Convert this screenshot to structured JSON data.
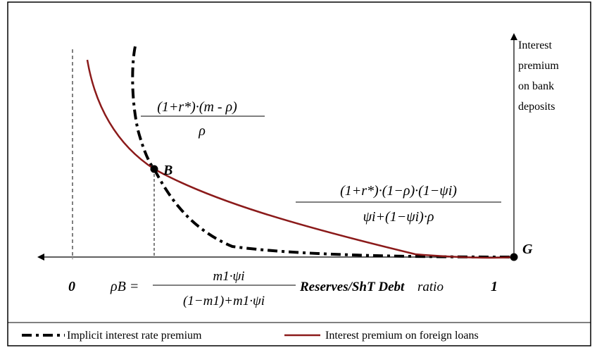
{
  "axis": {
    "y_title_lines": [
      "Interest",
      "premium",
      "on bank",
      "deposits"
    ],
    "x_origin_label": "0",
    "x_end_label": "1",
    "x_title_bold": "Reserves/ShT Debt",
    "x_title_plain": "ratio"
  },
  "points": {
    "B": "B",
    "G": "G"
  },
  "formulas": {
    "implicit": {
      "numerator": "(1+r*)·(m - ρ)",
      "denominator": "ρ"
    },
    "foreign": {
      "numerator": "(1+r*)·(1−ρ)·(1−ψi)",
      "denominator": "ψi+(1−ψi)·ρ"
    },
    "rho_b": {
      "lhs": "ρB =",
      "numerator": "m1·ψi",
      "denominator": "(1−m1)+m1·ψi"
    }
  },
  "legend": [
    {
      "label": "Implicit interest rate premium",
      "color": "#000000",
      "style": "dash-dot"
    },
    {
      "label": "Interest premium on foreign loans",
      "color": "#8b1a1a",
      "style": "solid"
    }
  ],
  "colors": {
    "implicit_curve": "#000000",
    "foreign_curve": "#8b1a1a",
    "frame": "#000000"
  }
}
